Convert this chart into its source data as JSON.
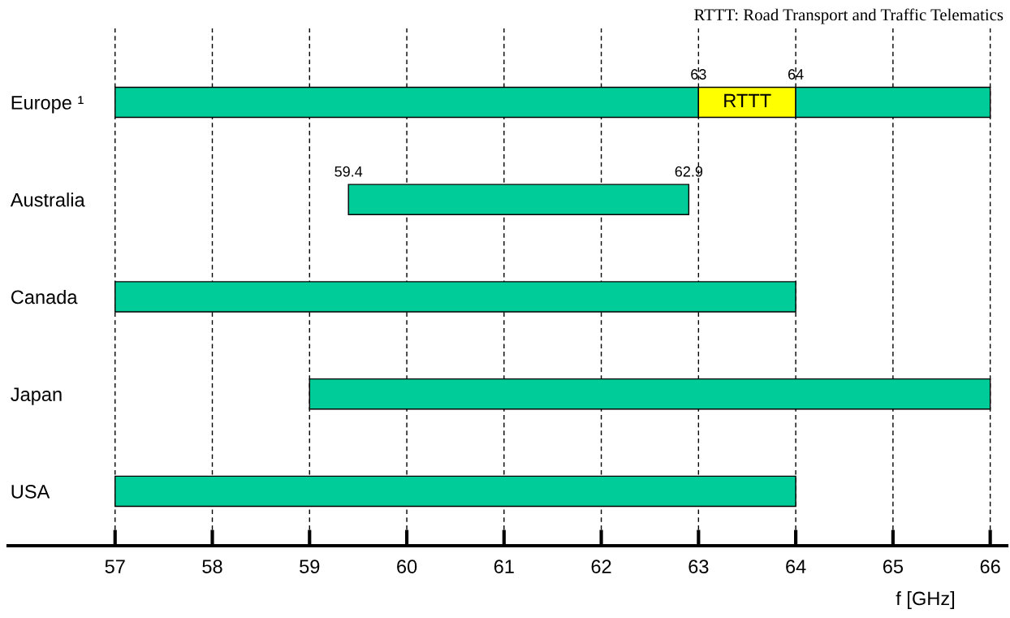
{
  "chart_data": {
    "type": "bar",
    "orientation": "horizontal",
    "title": "RTTT: Road Transport and Traffic Telematics",
    "xlabel": "f [GHz]",
    "categories": [
      "Europe ¹",
      "Australia",
      "Canada",
      "Japan",
      "USA"
    ],
    "series": [
      {
        "color": "#00cc99",
        "base": [
          57,
          59.4,
          57,
          59,
          57
        ],
        "values": [
          6,
          3.5,
          7,
          7,
          7
        ]
      },
      {
        "color": "#ffff00",
        "base": [
          63,
          null,
          null,
          null,
          null
        ],
        "values": [
          1,
          null,
          null,
          null,
          null
        ],
        "value_labels": [
          "RTTT",
          null,
          null,
          null,
          null
        ]
      },
      {
        "color": "#00cc99",
        "base": [
          64,
          null,
          null,
          null,
          null
        ],
        "values": [
          2,
          null,
          null,
          null,
          null
        ]
      }
    ],
    "xlim": [
      55.9,
      66.17
    ],
    "xticks": [
      57,
      58,
      59,
      60,
      61,
      62,
      63,
      64,
      65,
      66
    ],
    "grid": "x",
    "annotations": [
      {
        "text": "63",
        "x": 63,
        "y": "Europe ¹"
      },
      {
        "text": "64",
        "x": 64,
        "y": "Europe ¹"
      },
      {
        "text": "59.4",
        "x": 59.4,
        "y": "Australia"
      },
      {
        "text": "62.9",
        "x": 62.9,
        "y": "Australia"
      }
    ]
  }
}
